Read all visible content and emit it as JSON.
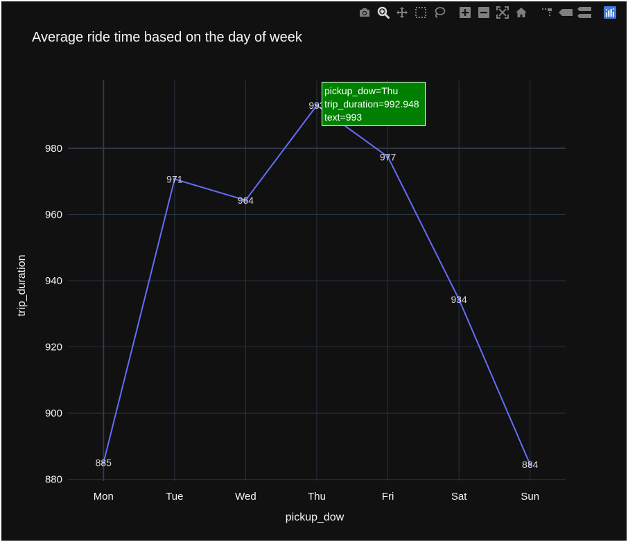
{
  "toolbar": {
    "buttons": [
      {
        "name": "download-plot-as-png",
        "icon": "camera-icon",
        "active": false
      },
      {
        "name": "zoom",
        "icon": "zoom-icon",
        "active": true
      },
      {
        "name": "pan",
        "icon": "pan-icon",
        "active": false
      },
      {
        "name": "box-select",
        "icon": "box-select-icon",
        "active": false
      },
      {
        "name": "lasso-select",
        "icon": "lasso-icon",
        "active": false
      },
      {
        "name": "zoom-in",
        "icon": "zoom-in-icon",
        "active": false
      },
      {
        "name": "zoom-out",
        "icon": "zoom-out-icon",
        "active": false
      },
      {
        "name": "autoscale",
        "icon": "autoscale-icon",
        "active": false
      },
      {
        "name": "reset-axes",
        "icon": "home-icon",
        "active": false
      },
      {
        "name": "toggle-spike-lines",
        "icon": "spike-lines-icon",
        "active": false
      },
      {
        "name": "show-closest-data-on-hover",
        "icon": "hover-closest-icon",
        "active": false
      },
      {
        "name": "compare-data-on-hover",
        "icon": "hover-compare-icon",
        "active": false
      },
      {
        "name": "produced-with-plotly",
        "icon": "plotly-logo-icon",
        "active": false
      }
    ],
    "colors": {
      "icon": "#7f7f7f",
      "icon_active": "#d8d8d8",
      "logo": "#447adb"
    }
  },
  "colors": {
    "paper": "#111111",
    "plot": "#111111",
    "grid": "#283442",
    "line": "#636efa",
    "text": "#f2f5fa",
    "tick_text": "#f2f5fa",
    "tooltip_bg": "#008000",
    "tooltip_border": "#ffffff"
  },
  "chart_data": {
    "type": "line",
    "title": "Average ride time based on the day of week",
    "xlabel": "pickup_dow",
    "ylabel": "trip_duration",
    "categories": [
      "Mon",
      "Tue",
      "Wed",
      "Thu",
      "Fri",
      "Sat",
      "Sun"
    ],
    "values": [
      885,
      970.7,
      964.3,
      992.948,
      977.4,
      934.4,
      884.5
    ],
    "text_labels": [
      "885",
      "971",
      "964",
      "993",
      "977",
      "934",
      "884"
    ],
    "ylim": [
      879.5,
      1000.5
    ],
    "yticks": [
      880,
      900,
      920,
      940,
      960,
      980
    ],
    "ytick_labels": [
      "880",
      "900",
      "920",
      "940",
      "960",
      "980"
    ],
    "grid": true,
    "spikeline_y": 980,
    "hover": {
      "point_index": 3,
      "lines": [
        "pickup_dow=Thu",
        "trip_duration=992.948",
        "text=993"
      ]
    }
  }
}
